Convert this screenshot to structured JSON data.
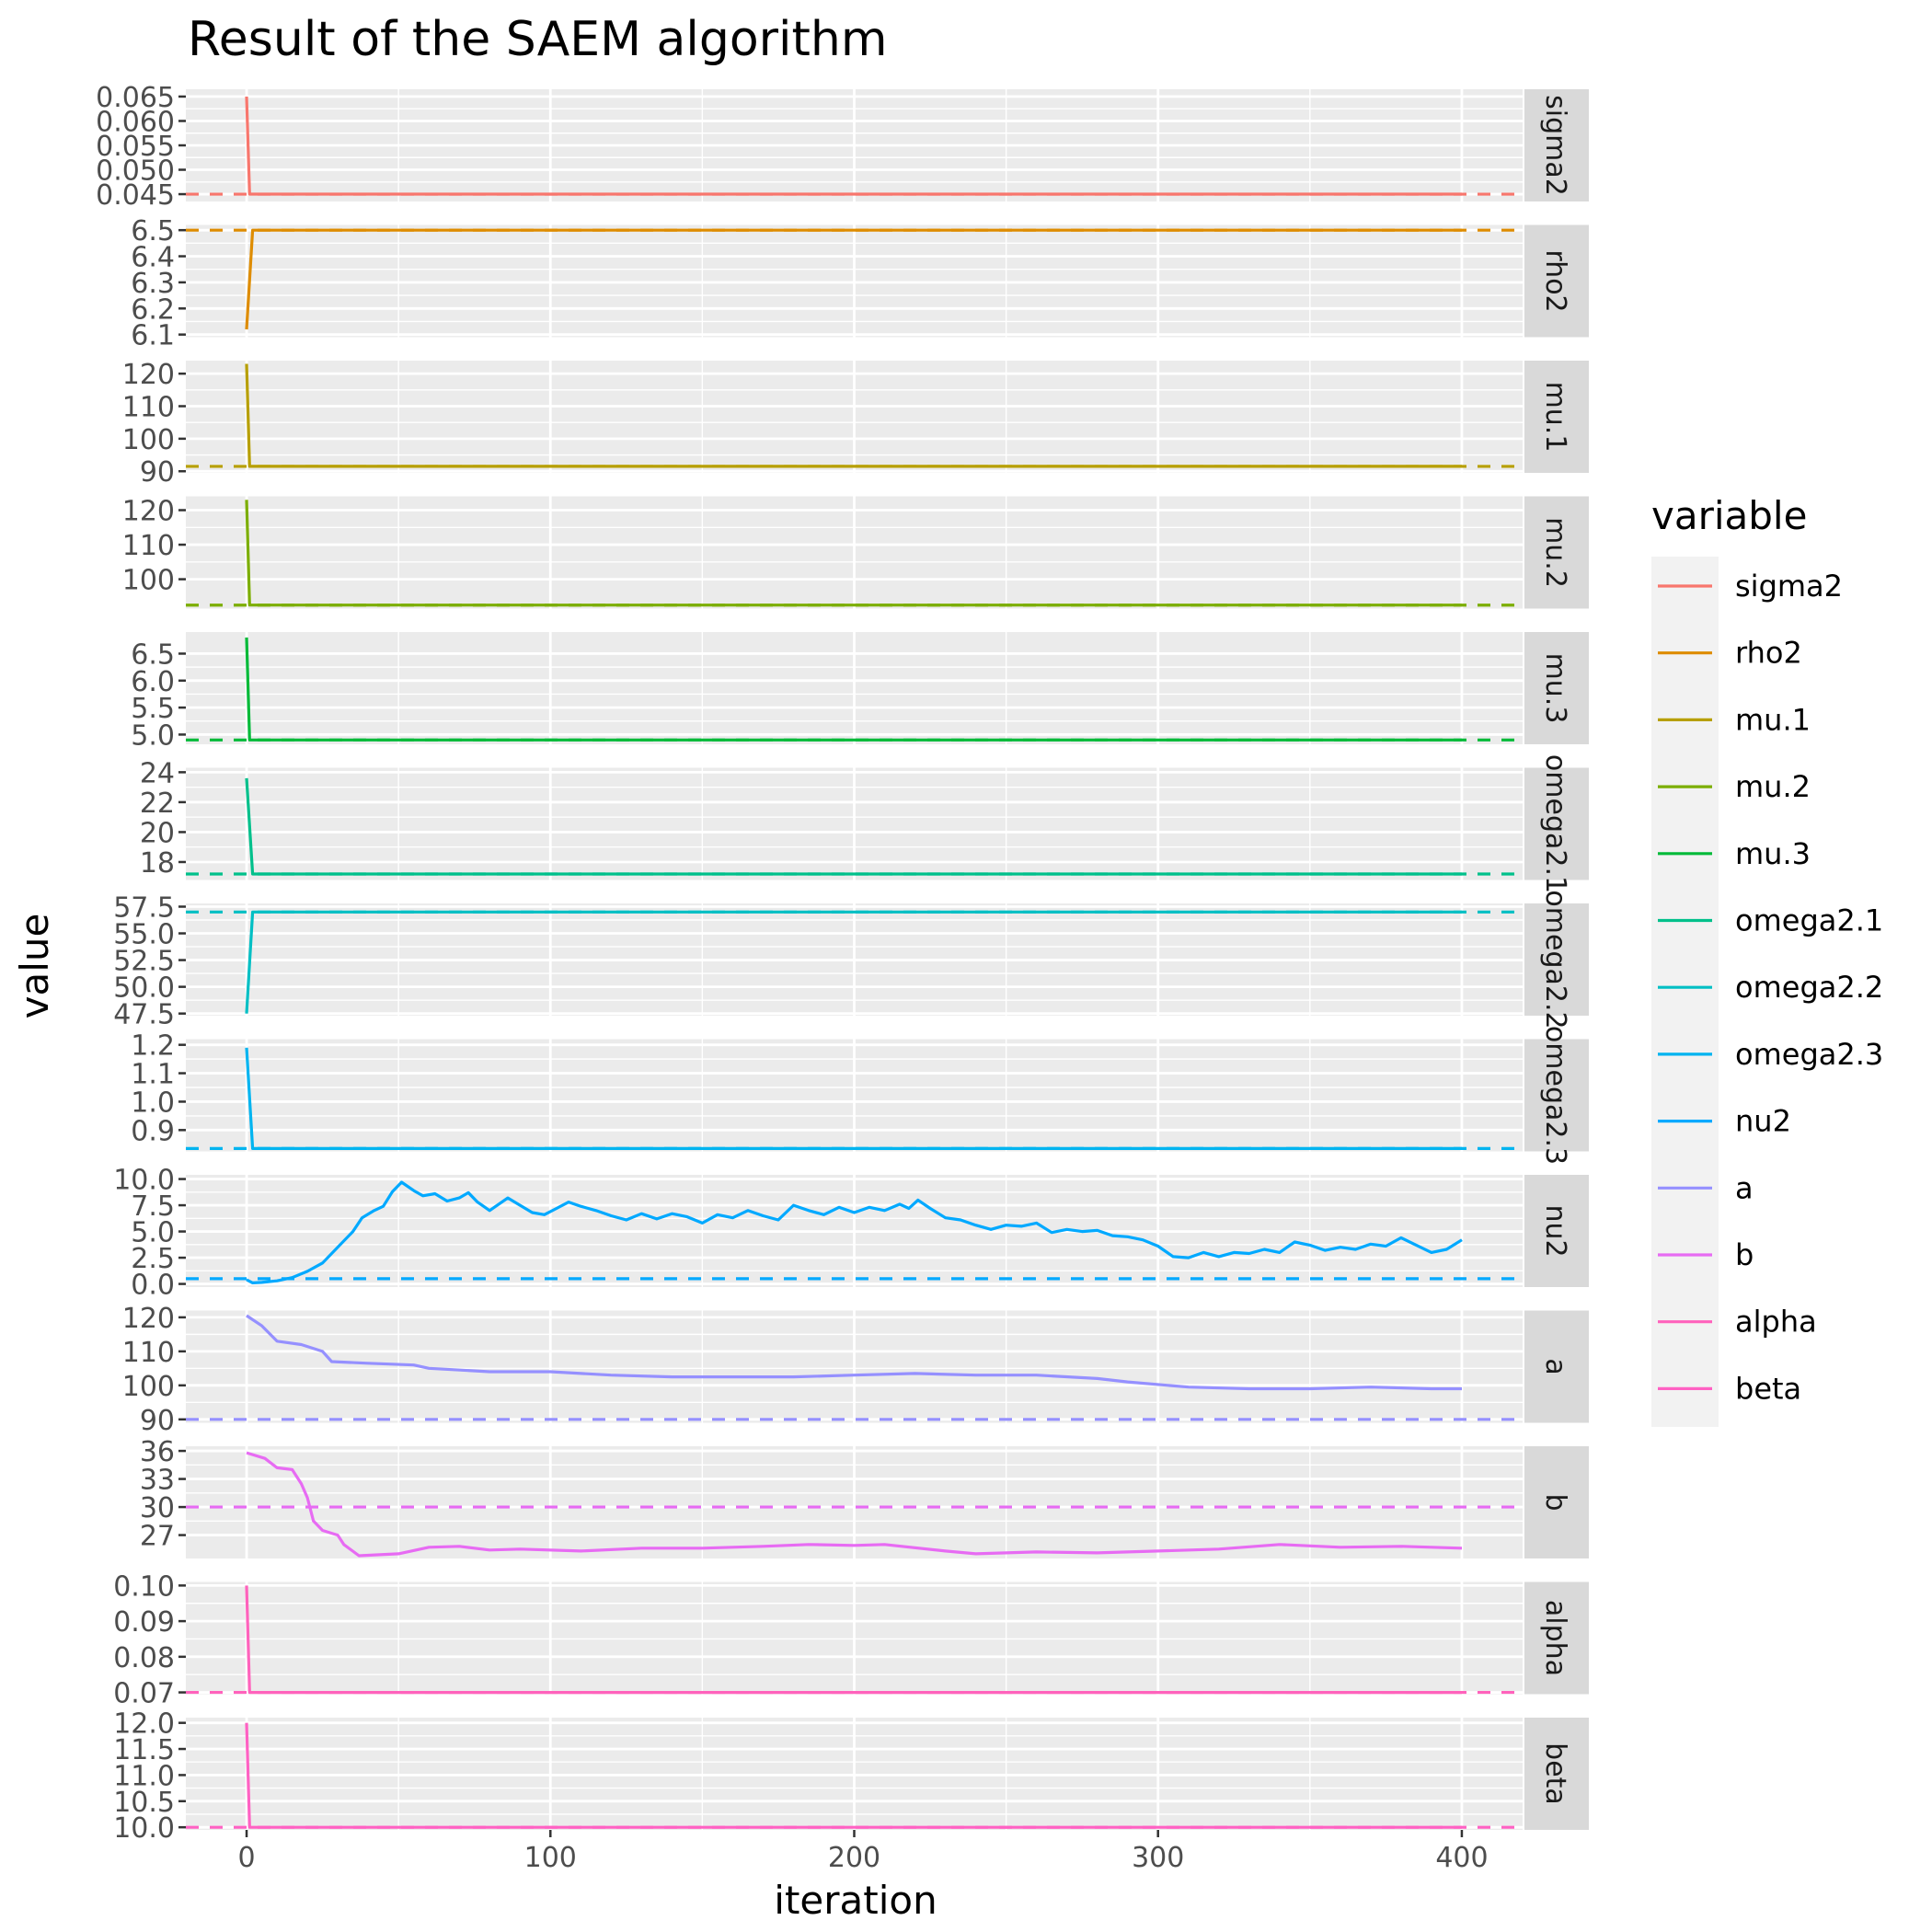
{
  "chart_data": {
    "type": "line",
    "title": "Result of the SAEM algorithm",
    "xlabel": "iteration",
    "ylabel": "value",
    "xlim": [
      -20,
      420
    ],
    "x_ticks": [
      "0",
      "100",
      "200",
      "300",
      "400"
    ],
    "x_tick_values": [
      0,
      100,
      200,
      300,
      400
    ],
    "grid": true,
    "facet": "rows, free y scales",
    "legend": {
      "title": "variable",
      "position": "right"
    },
    "series": [
      {
        "name": "sigma2",
        "color": "#F8766D",
        "true_value": 0.045,
        "ylim": [
          0.0435,
          0.0665
        ],
        "ticks": [
          0.045,
          0.05,
          0.055,
          0.06,
          0.065
        ],
        "tick_labels": [
          "0.045",
          "0.050",
          "0.055",
          "0.060",
          "0.065"
        ],
        "points": [
          [
            0,
            0.065
          ],
          [
            1,
            0.045
          ],
          [
            400,
            0.045
          ]
        ]
      },
      {
        "name": "rho2",
        "color": "#DE8C00",
        "true_value": 6.5,
        "ylim": [
          6.09,
          6.52
        ],
        "ticks": [
          6.1,
          6.2,
          6.3,
          6.4,
          6.5
        ],
        "tick_labels": [
          "6.1",
          "6.2",
          "6.3",
          "6.4",
          "6.5"
        ],
        "points": [
          [
            0,
            6.12
          ],
          [
            2,
            6.5
          ],
          [
            400,
            6.5
          ]
        ]
      },
      {
        "name": "mu.1",
        "color": "#B79F00",
        "true_value": 91.5,
        "ylim": [
          89.5,
          124
        ],
        "ticks": [
          90,
          100,
          110,
          120
        ],
        "tick_labels": [
          "90",
          "100",
          "110",
          "120"
        ],
        "points": [
          [
            0,
            123
          ],
          [
            1,
            91.5
          ],
          [
            400,
            91.5
          ]
        ]
      },
      {
        "name": "mu.2",
        "color": "#7CAE00",
        "true_value": 92.5,
        "ylim": [
          91.5,
          124
        ],
        "ticks": [
          100,
          110,
          120
        ],
        "tick_labels": [
          "100",
          "110",
          "120"
        ],
        "points": [
          [
            0,
            123
          ],
          [
            1,
            92.5
          ],
          [
            400,
            92.5
          ]
        ]
      },
      {
        "name": "mu.3",
        "color": "#00BA38",
        "true_value": 4.9,
        "ylim": [
          4.82,
          6.9
        ],
        "ticks": [
          5.0,
          5.5,
          6.0,
          6.5
        ],
        "tick_labels": [
          "5.0",
          "5.5",
          "6.0",
          "6.5"
        ],
        "points": [
          [
            0,
            6.8
          ],
          [
            1,
            4.9
          ],
          [
            400,
            4.9
          ]
        ]
      },
      {
        "name": "omega2.1",
        "color": "#00C08B",
        "true_value": 17.2,
        "ylim": [
          16.8,
          24.3
        ],
        "ticks": [
          18,
          20,
          22,
          24
        ],
        "tick_labels": [
          "18",
          "20",
          "22",
          "24"
        ],
        "points": [
          [
            0,
            23.6
          ],
          [
            2,
            17.2
          ],
          [
            400,
            17.2
          ]
        ]
      },
      {
        "name": "omega2.2",
        "color": "#00BFC4",
        "true_value": 57.0,
        "ylim": [
          47.3,
          57.8
        ],
        "ticks": [
          47.5,
          50.0,
          52.5,
          55.0,
          57.5
        ],
        "tick_labels": [
          "47.5",
          "50.0",
          "52.5",
          "55.0",
          "57.5"
        ],
        "points": [
          [
            0,
            47.5
          ],
          [
            2,
            57.0
          ],
          [
            400,
            57.0
          ]
        ]
      },
      {
        "name": "omega2.3",
        "color": "#00B4F0",
        "true_value": 0.835,
        "ylim": [
          0.825,
          1.22
        ],
        "ticks": [
          0.9,
          1.0,
          1.1,
          1.2
        ],
        "tick_labels": [
          "0.9",
          "1.0",
          "1.1",
          "1.2"
        ],
        "points": [
          [
            0,
            1.19
          ],
          [
            2,
            0.835
          ],
          [
            400,
            0.835
          ]
        ]
      },
      {
        "name": "nu2",
        "color": "#00A9FF",
        "true_value": 0.5,
        "ylim": [
          -0.3,
          10.4
        ],
        "ticks": [
          0.0,
          2.5,
          5.0,
          7.5,
          10.0
        ],
        "tick_labels": [
          "0.0",
          "2.5",
          "5.0",
          "7.5",
          "10.0"
        ],
        "points": [
          [
            0,
            0.4
          ],
          [
            2,
            0.1
          ],
          [
            5,
            0.15
          ],
          [
            10,
            0.3
          ],
          [
            15,
            0.6
          ],
          [
            20,
            1.2
          ],
          [
            25,
            2.0
          ],
          [
            30,
            3.5
          ],
          [
            35,
            5.0
          ],
          [
            38,
            6.3
          ],
          [
            42,
            7.0
          ],
          [
            45,
            7.4
          ],
          [
            48,
            8.8
          ],
          [
            51,
            9.7
          ],
          [
            55,
            8.9
          ],
          [
            58,
            8.4
          ],
          [
            62,
            8.6
          ],
          [
            66,
            7.9
          ],
          [
            70,
            8.2
          ],
          [
            73,
            8.7
          ],
          [
            76,
            7.8
          ],
          [
            80,
            7.0
          ],
          [
            83,
            7.6
          ],
          [
            86,
            8.2
          ],
          [
            90,
            7.5
          ],
          [
            94,
            6.8
          ],
          [
            98,
            6.6
          ],
          [
            102,
            7.2
          ],
          [
            106,
            7.8
          ],
          [
            110,
            7.4
          ],
          [
            115,
            7.0
          ],
          [
            120,
            6.5
          ],
          [
            125,
            6.1
          ],
          [
            130,
            6.7
          ],
          [
            135,
            6.2
          ],
          [
            140,
            6.7
          ],
          [
            145,
            6.4
          ],
          [
            150,
            5.8
          ],
          [
            155,
            6.6
          ],
          [
            160,
            6.3
          ],
          [
            165,
            7.0
          ],
          [
            170,
            6.5
          ],
          [
            175,
            6.1
          ],
          [
            180,
            7.5
          ],
          [
            185,
            7.0
          ],
          [
            190,
            6.6
          ],
          [
            195,
            7.3
          ],
          [
            200,
            6.8
          ],
          [
            205,
            7.3
          ],
          [
            210,
            7.0
          ],
          [
            215,
            7.6
          ],
          [
            218,
            7.2
          ],
          [
            221,
            8.0
          ],
          [
            225,
            7.2
          ],
          [
            230,
            6.3
          ],
          [
            235,
            6.1
          ],
          [
            240,
            5.6
          ],
          [
            245,
            5.2
          ],
          [
            250,
            5.6
          ],
          [
            255,
            5.5
          ],
          [
            260,
            5.8
          ],
          [
            265,
            4.9
          ],
          [
            270,
            5.2
          ],
          [
            275,
            5.0
          ],
          [
            280,
            5.1
          ],
          [
            285,
            4.6
          ],
          [
            290,
            4.5
          ],
          [
            295,
            4.2
          ],
          [
            300,
            3.6
          ],
          [
            305,
            2.6
          ],
          [
            310,
            2.5
          ],
          [
            315,
            3.0
          ],
          [
            320,
            2.6
          ],
          [
            325,
            3.0
          ],
          [
            330,
            2.9
          ],
          [
            335,
            3.3
          ],
          [
            340,
            3.0
          ],
          [
            345,
            4.0
          ],
          [
            350,
            3.7
          ],
          [
            355,
            3.2
          ],
          [
            360,
            3.5
          ],
          [
            365,
            3.3
          ],
          [
            370,
            3.8
          ],
          [
            375,
            3.6
          ],
          [
            380,
            4.4
          ],
          [
            385,
            3.7
          ],
          [
            390,
            3.0
          ],
          [
            395,
            3.3
          ],
          [
            400,
            4.2
          ]
        ]
      },
      {
        "name": "a",
        "color": "#9590FF",
        "true_value": 90,
        "ylim": [
          89,
          122
        ],
        "ticks": [
          90,
          100,
          110,
          120
        ],
        "tick_labels": [
          "90",
          "100",
          "110",
          "120"
        ],
        "points": [
          [
            0,
            120.5
          ],
          [
            5,
            117.5
          ],
          [
            10,
            113
          ],
          [
            18,
            112
          ],
          [
            25,
            110
          ],
          [
            28,
            107
          ],
          [
            40,
            106.5
          ],
          [
            55,
            106
          ],
          [
            60,
            105
          ],
          [
            80,
            104
          ],
          [
            100,
            104
          ],
          [
            120,
            103
          ],
          [
            140,
            102.5
          ],
          [
            160,
            102.5
          ],
          [
            180,
            102.5
          ],
          [
            200,
            103
          ],
          [
            220,
            103.5
          ],
          [
            240,
            103
          ],
          [
            260,
            103
          ],
          [
            280,
            102
          ],
          [
            290,
            101
          ],
          [
            310,
            99.5
          ],
          [
            330,
            99
          ],
          [
            350,
            99
          ],
          [
            370,
            99.5
          ],
          [
            390,
            99
          ],
          [
            400,
            99
          ]
        ]
      },
      {
        "name": "b",
        "color": "#E76BF3",
        "true_value": 30,
        "ylim": [
          24.5,
          36.5
        ],
        "ticks": [
          27,
          30,
          33,
          36
        ],
        "tick_labels": [
          "27",
          "30",
          "33",
          "36"
        ],
        "points": [
          [
            0,
            35.8
          ],
          [
            6,
            35.2
          ],
          [
            10,
            34.2
          ],
          [
            15,
            34.0
          ],
          [
            18,
            32.5
          ],
          [
            20,
            31.0
          ],
          [
            22,
            28.5
          ],
          [
            25,
            27.5
          ],
          [
            30,
            27.0
          ],
          [
            32,
            26.0
          ],
          [
            37,
            24.8
          ],
          [
            50,
            25.0
          ],
          [
            60,
            25.7
          ],
          [
            70,
            25.8
          ],
          [
            80,
            25.4
          ],
          [
            90,
            25.5
          ],
          [
            110,
            25.3
          ],
          [
            130,
            25.6
          ],
          [
            150,
            25.6
          ],
          [
            170,
            25.8
          ],
          [
            185,
            26.0
          ],
          [
            200,
            25.9
          ],
          [
            210,
            26.0
          ],
          [
            230,
            25.3
          ],
          [
            240,
            25.0
          ],
          [
            260,
            25.2
          ],
          [
            280,
            25.1
          ],
          [
            300,
            25.3
          ],
          [
            320,
            25.5
          ],
          [
            340,
            26.0
          ],
          [
            360,
            25.7
          ],
          [
            380,
            25.8
          ],
          [
            400,
            25.6
          ]
        ]
      },
      {
        "name": "alpha",
        "color": "#FF62BC",
        "true_value": 0.07,
        "ylim": [
          0.0695,
          0.101
        ],
        "ticks": [
          0.07,
          0.08,
          0.09,
          0.1
        ],
        "tick_labels": [
          "0.07",
          "0.08",
          "0.09",
          "0.10"
        ],
        "points": [
          [
            0,
            0.1
          ],
          [
            1,
            0.07
          ],
          [
            400,
            0.07
          ]
        ]
      },
      {
        "name": "beta",
        "color": "#FF61C3",
        "true_value": 10.0,
        "ylim": [
          9.95,
          12.1
        ],
        "ticks": [
          10.0,
          10.5,
          11.0,
          11.5,
          12.0
        ],
        "tick_labels": [
          "10.0",
          "10.5",
          "11.0",
          "11.5",
          "12.0"
        ],
        "points": [
          [
            0,
            12.0
          ],
          [
            1,
            10.0
          ],
          [
            400,
            10.0
          ]
        ]
      }
    ]
  }
}
